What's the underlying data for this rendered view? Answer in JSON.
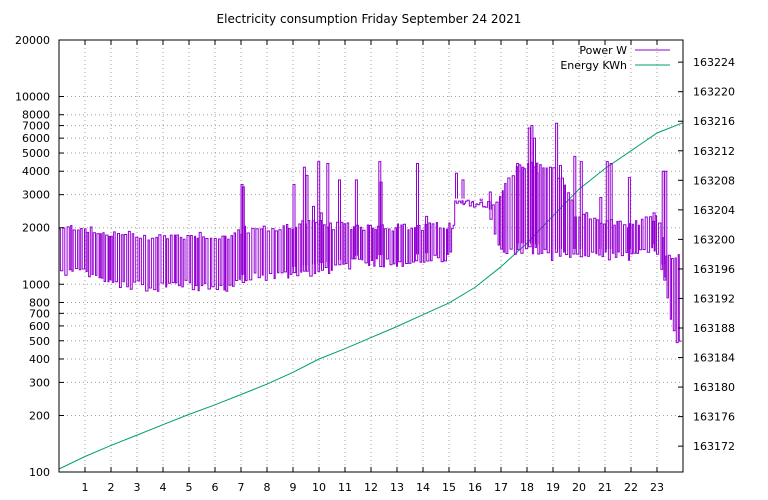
{
  "chart_data": {
    "type": "line",
    "title": "Electricity consumption Friday September 24 2021",
    "x": {
      "ticks": [
        1,
        2,
        3,
        4,
        5,
        6,
        7,
        8,
        9,
        10,
        11,
        12,
        13,
        14,
        15,
        16,
        17,
        18,
        19,
        20,
        21,
        22,
        23
      ],
      "range": [
        0,
        24
      ],
      "grid": true
    },
    "y_left": {
      "scale": "log",
      "range": [
        100,
        20000
      ],
      "ticks": [
        100,
        200,
        300,
        400,
        500,
        600,
        700,
        800,
        1000,
        2000,
        3000,
        4000,
        5000,
        6000,
        7000,
        8000,
        10000,
        20000
      ],
      "grid": true
    },
    "y_right": {
      "scale": "linear",
      "range": [
        163168.5,
        163227
      ],
      "ticks": [
        163172,
        163176,
        163180,
        163184,
        163188,
        163192,
        163196,
        163200,
        163204,
        163208,
        163212,
        163216,
        163220,
        163224
      ]
    },
    "legend_placement": "top-right",
    "series": [
      {
        "name": "Power W",
        "axis": "y_left",
        "color": "#9400d3",
        "band_profile": [
          [
            0.0,
            1150,
            2000
          ],
          [
            0.8,
            1150,
            2100
          ],
          [
            1.5,
            1050,
            1900
          ],
          [
            2.5,
            1000,
            1900
          ],
          [
            3.5,
            950,
            1850
          ],
          [
            4.5,
            1000,
            1850
          ],
          [
            5.5,
            950,
            1900
          ],
          [
            6.5,
            950,
            1800
          ],
          [
            6.9,
            1000,
            2000
          ],
          [
            7.5,
            1100,
            2000
          ],
          [
            8.5,
            1100,
            2050
          ],
          [
            9.5,
            1150,
            2200
          ],
          [
            10.5,
            1200,
            2100
          ],
          [
            11.5,
            1300,
            2100
          ],
          [
            12.5,
            1300,
            2100
          ],
          [
            13.5,
            1300,
            2050
          ],
          [
            14.5,
            1350,
            2100
          ],
          [
            15.1,
            1400,
            2100
          ],
          [
            15.2,
            2600,
            2800
          ],
          [
            16.4,
            2600,
            2800
          ],
          [
            16.9,
            1500,
            2900
          ],
          [
            17.5,
            1500,
            4200
          ],
          [
            18.2,
            1500,
            4500
          ],
          [
            19.0,
            1400,
            4300
          ],
          [
            19.9,
            1400,
            2300
          ],
          [
            20.5,
            1400,
            2400
          ],
          [
            21.0,
            1400,
            2200
          ],
          [
            22.0,
            1400,
            2100
          ],
          [
            23.0,
            1500,
            2400
          ],
          [
            23.35,
            900,
            1500
          ],
          [
            23.5,
            650,
            1450
          ],
          [
            23.7,
            500,
            1450
          ],
          [
            23.95,
            480,
            1400
          ]
        ],
        "spikes": [
          [
            7.0,
            3400
          ],
          [
            7.05,
            3300
          ],
          [
            9.0,
            3400
          ],
          [
            9.4,
            4200
          ],
          [
            9.5,
            3800
          ],
          [
            9.75,
            2600
          ],
          [
            9.95,
            4500
          ],
          [
            10.05,
            2400
          ],
          [
            10.3,
            4400
          ],
          [
            10.75,
            3600
          ],
          [
            11.4,
            3600
          ],
          [
            12.3,
            4500
          ],
          [
            12.35,
            3500
          ],
          [
            13.75,
            4400
          ],
          [
            14.1,
            2300
          ],
          [
            15.25,
            3900
          ],
          [
            15.5,
            3600
          ],
          [
            16.2,
            2800
          ],
          [
            16.55,
            3100
          ],
          [
            17.6,
            4400
          ],
          [
            17.8,
            4200
          ],
          [
            18.05,
            6800
          ],
          [
            18.15,
            7000
          ],
          [
            18.25,
            6000
          ],
          [
            18.35,
            3900
          ],
          [
            19.1,
            7200
          ],
          [
            19.25,
            4300
          ],
          [
            19.8,
            4800
          ],
          [
            20.05,
            4500
          ],
          [
            20.8,
            2900
          ],
          [
            21.05,
            4500
          ],
          [
            21.2,
            4400
          ],
          [
            21.9,
            3700
          ],
          [
            22.85,
            2400
          ],
          [
            23.2,
            4000
          ],
          [
            23.3,
            4000
          ]
        ]
      },
      {
        "name": "Energy KWh",
        "axis": "y_right",
        "color": "#009e73",
        "points": [
          [
            0.0,
            163168.9
          ],
          [
            1.0,
            163170.6
          ],
          [
            2.0,
            163172.1
          ],
          [
            3.0,
            163173.5
          ],
          [
            4.0,
            163174.9
          ],
          [
            5.0,
            163176.3
          ],
          [
            6.0,
            163177.6
          ],
          [
            7.0,
            163179.0
          ],
          [
            8.0,
            163180.4
          ],
          [
            9.0,
            163182.0
          ],
          [
            10.0,
            163183.8
          ],
          [
            11.0,
            163185.2
          ],
          [
            12.0,
            163186.7
          ],
          [
            13.0,
            163188.2
          ],
          [
            14.0,
            163189.8
          ],
          [
            15.0,
            163191.4
          ],
          [
            16.0,
            163193.5
          ],
          [
            17.0,
            163196.3
          ],
          [
            18.0,
            163199.5
          ],
          [
            19.0,
            163203.2
          ],
          [
            20.0,
            163206.8
          ],
          [
            21.0,
            163209.6
          ],
          [
            22.0,
            163212.0
          ],
          [
            23.0,
            163214.4
          ],
          [
            24.0,
            163215.8
          ]
        ]
      }
    ]
  }
}
